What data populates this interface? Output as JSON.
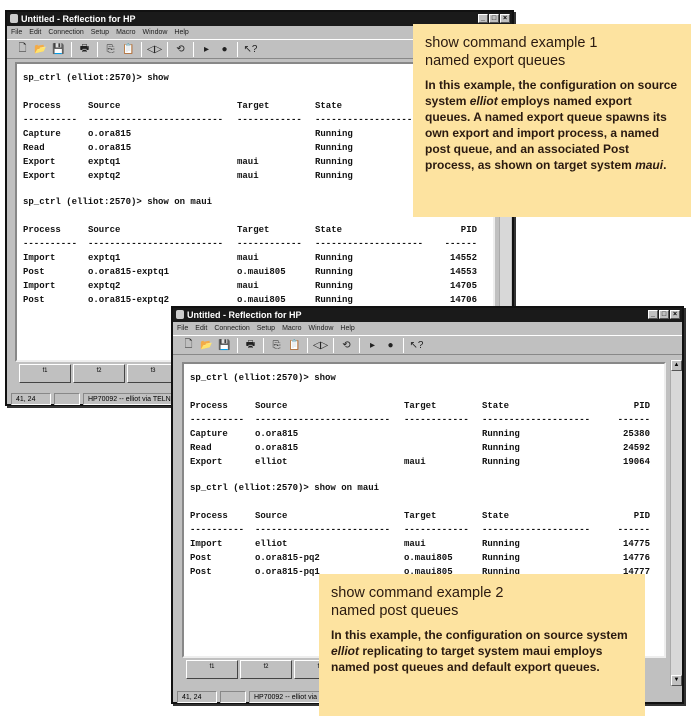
{
  "window_title": "Untitled - Reflection for HP",
  "menu": [
    "File",
    "Edit",
    "Connection",
    "Setup",
    "Macro",
    "Window",
    "Help"
  ],
  "toolbar_icons": [
    "new-icon",
    "open-icon",
    "save-icon",
    "print-icon",
    "copy-icon",
    "paste-icon",
    "transfer-icon",
    "macro-icon",
    "play-icon",
    "record-icon",
    "help-icon"
  ],
  "columns": [
    "Process",
    "Source",
    "Target",
    "State",
    "PID"
  ],
  "divider": [
    "----------",
    "-------------------------",
    "------------",
    "--------------------",
    "------"
  ],
  "window1": {
    "cmd1": "sp_ctrl (elliot:2570)> show",
    "rows1": [
      [
        "Capture",
        "o.ora815",
        "",
        "Running",
        ""
      ],
      [
        "Read",
        "o.ora815",
        "",
        "Running",
        ""
      ],
      [
        "Export",
        "exptq1",
        "maui",
        "Running",
        ""
      ],
      [
        "Export",
        "exptq2",
        "maui",
        "Running",
        ""
      ]
    ],
    "cmd2": "sp_ctrl (elliot:2570)> show on maui",
    "rows2": [
      [
        "Import",
        "exptq1",
        "maui",
        "Running",
        "14552"
      ],
      [
        "Post",
        "o.ora815-exptq1",
        "o.maui805",
        "Running",
        "14553"
      ],
      [
        "Import",
        "exptq2",
        "maui",
        "Running",
        "14705"
      ],
      [
        "Post",
        "o.ora815-exptq2",
        "o.maui805",
        "Running",
        "14706"
      ]
    ],
    "fkeys": [
      "f1",
      "f2",
      "f3"
    ],
    "status": [
      "41, 24",
      "",
      "HP70092 -- elliot via TELNET"
    ]
  },
  "window2": {
    "cmd1": "sp_ctrl (elliot:2570)> show",
    "rows1": [
      [
        "Capture",
        "o.ora815",
        "",
        "Running",
        "25380"
      ],
      [
        "Read",
        "o.ora815",
        "",
        "Running",
        "24592"
      ],
      [
        "Export",
        "elliot",
        "maui",
        "Running",
        "19064"
      ]
    ],
    "cmd2": "sp_ctrl (elliot:2570)> show on maui",
    "rows2": [
      [
        "Import",
        "elliot",
        "maui",
        "Running",
        "14775"
      ],
      [
        "Post",
        "o.ora815-pq2",
        "o.maui805",
        "Running",
        "14776"
      ],
      [
        "Post",
        "o.ora815-pq1",
        "o.maui805",
        "Running",
        "14777"
      ]
    ],
    "fkeys": [
      "f1",
      "f2",
      "f3"
    ],
    "status": [
      "41, 24",
      "",
      "HP70092 -- elliot via TELNET"
    ]
  },
  "callout1": {
    "title1": "show command example 1",
    "title2": "named export queues",
    "body_pre": "In this example, the configuration on source system ",
    "body_em1": "elliot",
    "body_mid": " employs named export queues. A named export queue spawns its own export and import process, a named post queue, and an associated Post process, as shown on target system ",
    "body_em2": "maui",
    "body_post": "."
  },
  "callout2": {
    "title1": "show command example 2",
    "title2": "named post queues",
    "body_pre": "In this example, the configuration on source system ",
    "body_em1": "elliot",
    "body_post": " replicating to target system maui employs named post queues and default export queues."
  }
}
